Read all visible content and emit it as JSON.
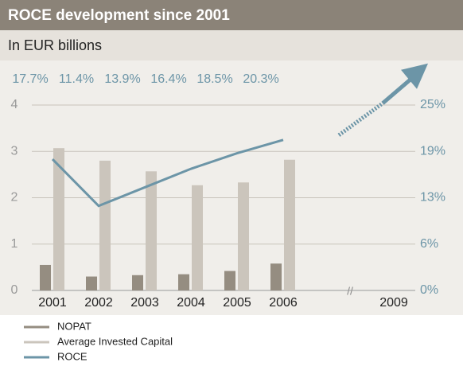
{
  "chart_data": {
    "type": "bar",
    "title": "ROCE development since 2001",
    "subtitle": "In EUR billions",
    "categories": [
      "2001",
      "2002",
      "2003",
      "2004",
      "2005",
      "2006",
      "2009"
    ],
    "series": [
      {
        "name": "NOPAT",
        "color": "#958d81",
        "values": [
          0.55,
          0.3,
          0.33,
          0.35,
          0.42,
          0.58,
          null
        ]
      },
      {
        "name": "Average Invested Capital",
        "color": "#cbc5bc",
        "values": [
          3.07,
          2.8,
          2.57,
          2.27,
          2.33,
          2.82,
          null
        ]
      },
      {
        "name": "ROCE",
        "type": "line",
        "axis": "y2",
        "color": "#6c95a7",
        "values": [
          17.7,
          11.4,
          13.9,
          16.4,
          18.5,
          20.3,
          null
        ],
        "value_labels": [
          "17.7%",
          "11.4%",
          "13.9%",
          "16.4%",
          "18.5%",
          "20.3%",
          null
        ]
      }
    ],
    "ylim": [
      0,
      4
    ],
    "yticks": [
      0,
      1,
      2,
      3,
      4
    ],
    "y2lim": [
      0,
      25
    ],
    "y2ticks": [
      {
        "value": 0,
        "label": "0%"
      },
      {
        "value": 6.25,
        "label": "6%"
      },
      {
        "value": 12.5,
        "label": "13%"
      },
      {
        "value": 18.75,
        "label": "19%"
      },
      {
        "value": 25,
        "label": "25%"
      }
    ],
    "grid": true
  }
}
